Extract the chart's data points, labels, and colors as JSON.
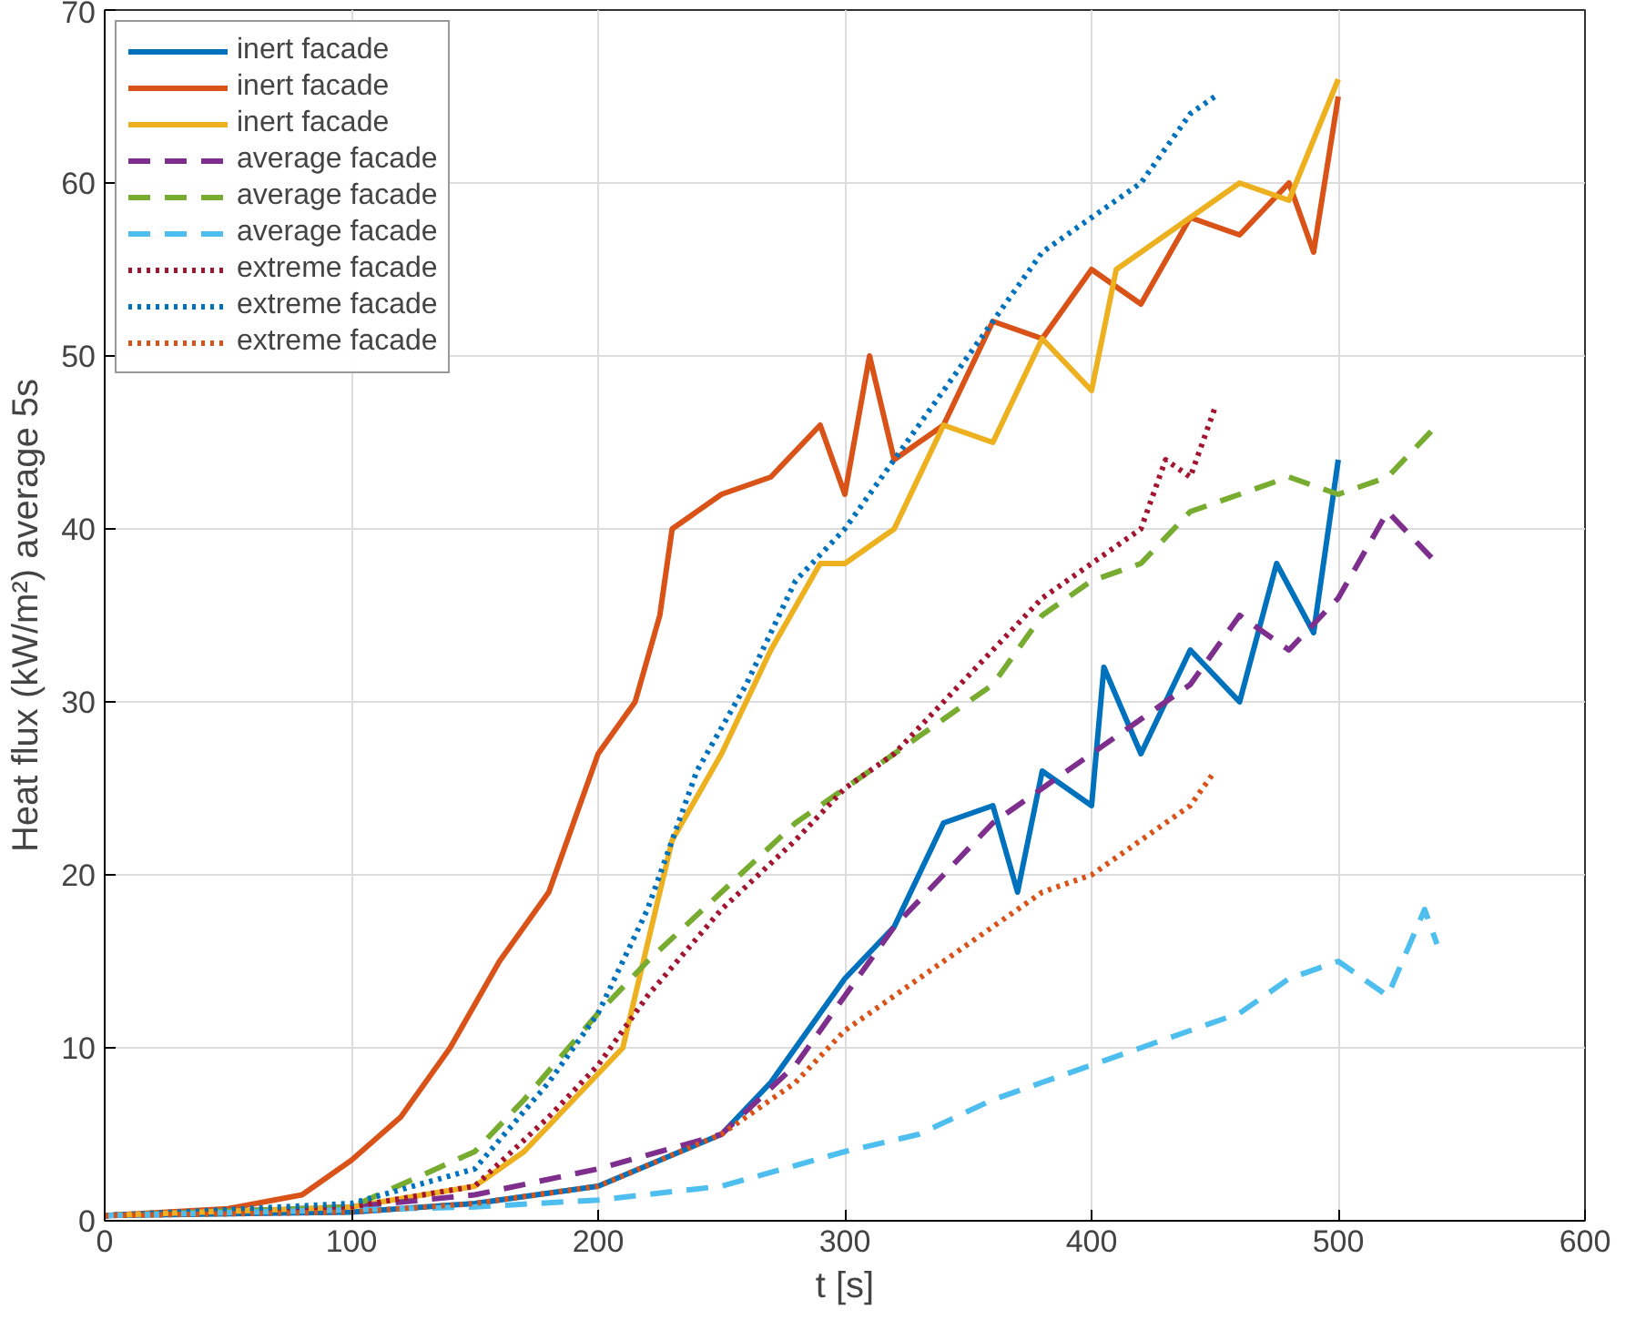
{
  "chart_data": {
    "type": "line",
    "xlabel": "t [s]",
    "ylabel": "Heat flux (kW/m²) average 5s",
    "xlim": [
      0,
      600
    ],
    "ylim": [
      0,
      70
    ],
    "xticks": [
      0,
      100,
      200,
      300,
      400,
      500,
      600
    ],
    "yticks": [
      0,
      10,
      20,
      30,
      40,
      50,
      60,
      70
    ],
    "grid": true,
    "legend": "top left",
    "series": [
      {
        "name": "inert facade",
        "color": "#0072bd",
        "line_style": "solid",
        "x": [
          0,
          100,
          150,
          200,
          250,
          270,
          280,
          300,
          320,
          340,
          360,
          370,
          380,
          400,
          405,
          420,
          440,
          460,
          475,
          490,
          500
        ],
        "values": [
          0.3,
          0.5,
          1,
          2,
          5,
          8,
          10,
          14,
          17,
          23,
          24,
          19,
          26,
          24,
          32,
          27,
          33,
          30,
          38,
          34,
          44
        ]
      },
      {
        "name": "inert facade",
        "color": "#d95319",
        "line_style": "solid",
        "x": [
          0,
          50,
          80,
          100,
          120,
          140,
          160,
          180,
          200,
          215,
          225,
          230,
          250,
          270,
          290,
          300,
          310,
          320,
          340,
          360,
          380,
          400,
          420,
          440,
          460,
          480,
          490,
          500
        ],
        "values": [
          0.3,
          0.7,
          1.5,
          3.5,
          6,
          10,
          15,
          19,
          27,
          30,
          35,
          40,
          42,
          43,
          46,
          42,
          50,
          44,
          46,
          52,
          51,
          55,
          53,
          58,
          57,
          60,
          56,
          65
        ]
      },
      {
        "name": "inert facade",
        "color": "#edb120",
        "line_style": "solid",
        "x": [
          0,
          100,
          150,
          170,
          190,
          210,
          230,
          250,
          270,
          290,
          300,
          320,
          340,
          360,
          380,
          400,
          410,
          440,
          460,
          480,
          500
        ],
        "values": [
          0.3,
          0.8,
          2,
          4,
          7,
          10,
          22,
          27,
          33,
          38,
          38,
          40,
          46,
          45,
          51,
          48,
          55,
          58,
          60,
          59,
          66
        ]
      },
      {
        "name": "average facade",
        "color": "#7e2f8e",
        "line_style": "dashed",
        "x": [
          0,
          100,
          150,
          200,
          250,
          280,
          300,
          320,
          340,
          360,
          380,
          400,
          420,
          440,
          460,
          480,
          500,
          520,
          540
        ],
        "values": [
          0.3,
          0.8,
          1.5,
          3,
          5,
          9,
          13,
          17,
          20,
          23,
          25,
          27,
          29,
          31,
          35,
          33,
          36,
          41,
          38
        ]
      },
      {
        "name": "average facade",
        "color": "#77ac30",
        "line_style": "dashed",
        "x": [
          0,
          100,
          150,
          170,
          200,
          220,
          250,
          280,
          300,
          320,
          340,
          360,
          380,
          400,
          420,
          440,
          460,
          480,
          500,
          520,
          540
        ],
        "values": [
          0.3,
          0.8,
          4,
          7,
          12,
          15,
          19,
          23,
          25,
          27,
          29,
          31,
          35,
          37,
          38,
          41,
          42,
          43,
          42,
          43,
          46
        ]
      },
      {
        "name": "average facade",
        "color": "#4dbeee",
        "line_style": "dashed",
        "x": [
          0,
          150,
          200,
          250,
          300,
          330,
          360,
          380,
          400,
          420,
          440,
          460,
          480,
          500,
          520,
          535,
          540
        ],
        "values": [
          0.3,
          0.8,
          1.2,
          2,
          4,
          5,
          7,
          8,
          9,
          10,
          11,
          12,
          14,
          15,
          13,
          18,
          16
        ]
      },
      {
        "name": "extreme facade",
        "color": "#a2142f",
        "line_style": "dotted",
        "x": [
          0,
          100,
          150,
          180,
          200,
          220,
          250,
          280,
          300,
          320,
          340,
          360,
          380,
          400,
          420,
          430,
          440,
          450
        ],
        "values": [
          0.3,
          0.8,
          2,
          6,
          9,
          13,
          18,
          22,
          25,
          27,
          30,
          33,
          36,
          38,
          40,
          44,
          43,
          47
        ]
      },
      {
        "name": "extreme facade",
        "color": "#0072bd",
        "line_style": "dotted",
        "x": [
          0,
          100,
          150,
          180,
          200,
          220,
          240,
          260,
          280,
          300,
          320,
          340,
          360,
          380,
          400,
          420,
          440,
          450
        ],
        "values": [
          0.3,
          1,
          3,
          8,
          12,
          18,
          26,
          31,
          37,
          40,
          44,
          48,
          52,
          56,
          58,
          60,
          64,
          65
        ]
      },
      {
        "name": "extreme facade",
        "color": "#d95319",
        "line_style": "dotted",
        "x": [
          0,
          100,
          150,
          200,
          250,
          280,
          300,
          320,
          340,
          360,
          380,
          400,
          420,
          440,
          450
        ],
        "values": [
          0.3,
          0.5,
          1,
          2,
          5,
          8,
          11,
          13,
          15,
          17,
          19,
          20,
          22,
          24,
          26
        ]
      }
    ]
  }
}
